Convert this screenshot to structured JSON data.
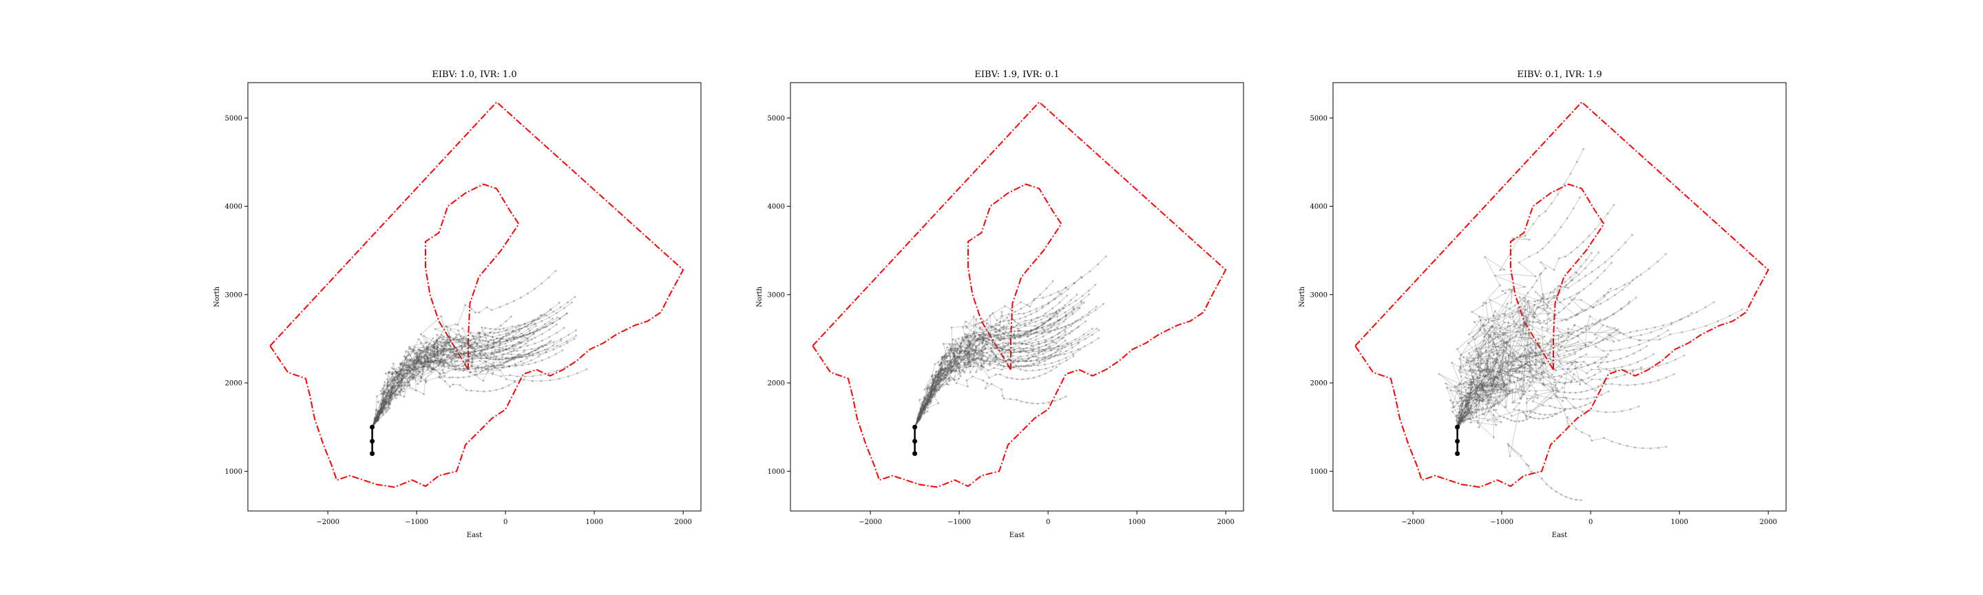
{
  "chart_data": [
    {
      "type": "line",
      "title": "EIBV: 1.0, IVR: 1.0",
      "xlabel": "East",
      "ylabel": "North",
      "xlim": [
        -2900,
        2200
      ],
      "ylim": [
        550,
        5400
      ],
      "xticks": [
        -2000,
        -1000,
        0,
        1000,
        2000
      ],
      "yticks": [
        1000,
        2000,
        3000,
        4000,
        5000
      ],
      "xtick_labels": [
        "−2000",
        "−1000",
        "0",
        "1000",
        "2000"
      ],
      "ytick_labels": [
        "1000",
        "2000",
        "3000",
        "4000",
        "5000"
      ],
      "grid": false,
      "series": [
        {
          "x": [
            -1500,
            -1500,
            -1500
          ],
          "y": [
            1200,
            1340,
            1500
          ],
          "color": "#000000",
          "style": "solid-markers"
        }
      ],
      "trajectory_end": [
        400,
        3000
      ],
      "trajectory_spread": 180,
      "trajectory_count": 40
    },
    {
      "type": "line",
      "title": "EIBV: 1.9, IVR: 0.1",
      "xlabel": "East",
      "ylabel": "North",
      "xlim": [
        -2900,
        2200
      ],
      "ylim": [
        550,
        5400
      ],
      "xticks": [
        -2000,
        -1000,
        0,
        1000,
        2000
      ],
      "yticks": [
        1000,
        2000,
        3000,
        4000,
        5000
      ],
      "xtick_labels": [
        "−2000",
        "−1000",
        "0",
        "1000",
        "2000"
      ],
      "ytick_labels": [
        "1000",
        "2000",
        "3000",
        "4000",
        "5000"
      ],
      "grid": false,
      "series": [
        {
          "x": [
            -1500,
            -1500,
            -1500
          ],
          "y": [
            1200,
            1340,
            1500
          ],
          "color": "#000000",
          "style": "solid-markers"
        }
      ],
      "trajectory_end": [
        300,
        3100
      ],
      "trajectory_spread": 140,
      "trajectory_count": 40
    },
    {
      "type": "line",
      "title": "EIBV: 0.1, IVR: 1.9",
      "xlabel": "East",
      "ylabel": "North",
      "xlim": [
        -2900,
        2200
      ],
      "ylim": [
        550,
        5400
      ],
      "xticks": [
        -2000,
        -1000,
        0,
        1000,
        2000
      ],
      "yticks": [
        1000,
        2000,
        3000,
        4000,
        5000
      ],
      "xtick_labels": [
        "−2000",
        "−1000",
        "0",
        "1000",
        "2000"
      ],
      "ytick_labels": [
        "1000",
        "2000",
        "3000",
        "4000",
        "5000"
      ],
      "grid": false,
      "series": [
        {
          "x": [
            -1500,
            -1500,
            -1500
          ],
          "y": [
            1200,
            1340,
            1500
          ],
          "color": "#000000",
          "style": "solid-markers"
        }
      ],
      "trajectory_end": [
        300,
        3100
      ],
      "trajectory_spread": 420,
      "trajectory_count": 40
    }
  ],
  "boundary": {
    "color": "#ff0000",
    "outer": [
      [
        -2650,
        2420
      ],
      [
        -2450,
        2120
      ],
      [
        -2250,
        2050
      ],
      [
        -2200,
        1850
      ],
      [
        -2150,
        1600
      ],
      [
        -2050,
        1300
      ],
      [
        -1950,
        1050
      ],
      [
        -1900,
        900
      ],
      [
        -1750,
        950
      ],
      [
        -1600,
        900
      ],
      [
        -1450,
        850
      ],
      [
        -1250,
        820
      ],
      [
        -1050,
        900
      ],
      [
        -900,
        830
      ],
      [
        -750,
        950
      ],
      [
        -550,
        1000
      ],
      [
        -450,
        1300
      ],
      [
        -300,
        1450
      ],
      [
        -150,
        1600
      ],
      [
        0,
        1700
      ],
      [
        100,
        1900
      ],
      [
        200,
        2100
      ],
      [
        350,
        2150
      ],
      [
        500,
        2080
      ],
      [
        650,
        2150
      ],
      [
        800,
        2250
      ],
      [
        950,
        2380
      ],
      [
        1100,
        2450
      ],
      [
        1250,
        2550
      ],
      [
        1450,
        2650
      ],
      [
        1600,
        2700
      ],
      [
        1750,
        2800
      ],
      [
        1850,
        3000
      ],
      [
        2000,
        3280
      ],
      [
        -100,
        5180
      ],
      [
        -2650,
        2420
      ]
    ],
    "inner": [
      [
        -420,
        2150
      ],
      [
        -600,
        2450
      ],
      [
        -750,
        2700
      ],
      [
        -850,
        3000
      ],
      [
        -900,
        3300
      ],
      [
        -900,
        3600
      ],
      [
        -750,
        3700
      ],
      [
        -650,
        4000
      ],
      [
        -450,
        4150
      ],
      [
        -250,
        4250
      ],
      [
        -100,
        4200
      ],
      [
        50,
        3950
      ],
      [
        150,
        3800
      ],
      [
        -50,
        3500
      ],
      [
        -300,
        3200
      ],
      [
        -400,
        2900
      ],
      [
        -420,
        2500
      ],
      [
        -420,
        2150
      ]
    ]
  },
  "colors": {
    "boundary": "#ff0000",
    "trajectories": "#555555",
    "start_path": "#000000"
  }
}
